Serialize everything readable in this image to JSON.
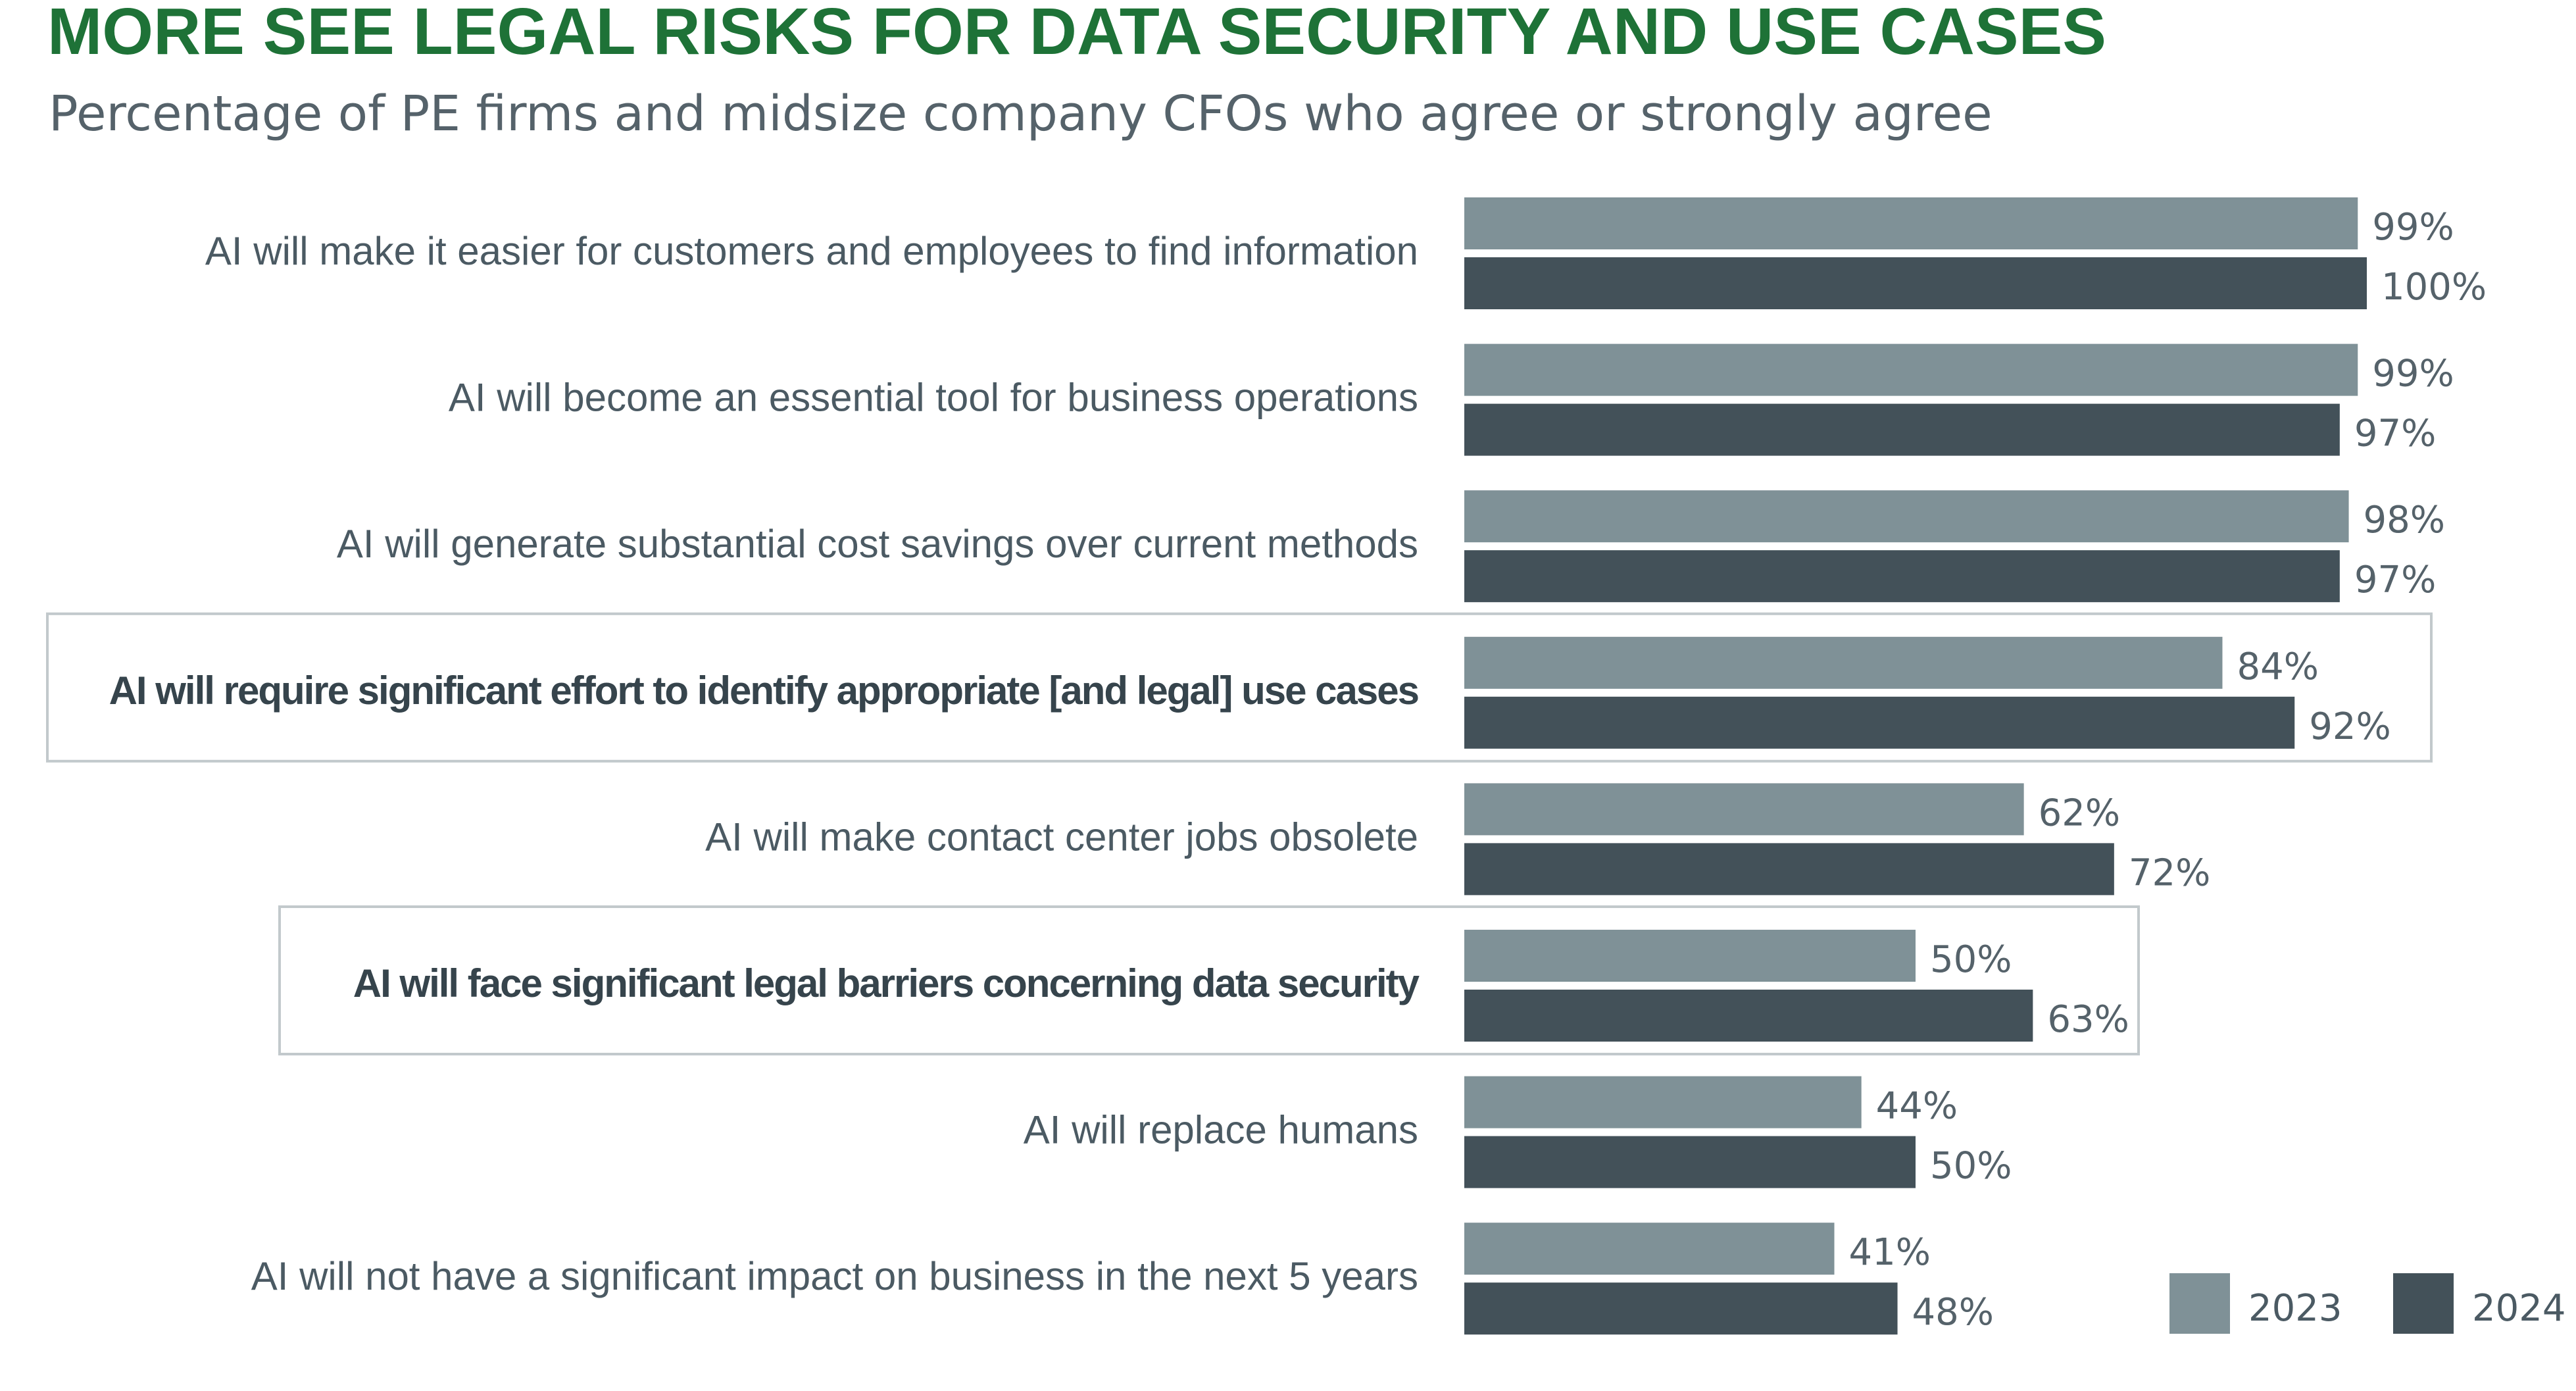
{
  "chart_data": {
    "type": "bar",
    "orientation": "horizontal",
    "title": "MORE SEE LEGAL RISKS FOR DATA SECURITY AND USE CASES",
    "subtitle": "Percentage of PE firms and midsize company CFOs who agree or strongly agree",
    "categories": [
      "AI will make it easier for customers and employees to find information",
      "AI will become an essential tool for business operations",
      "AI will generate substantial cost savings over current methods",
      "AI will require significant effort to identify appropriate [and legal] use cases",
      "AI will make contact center jobs obsolete",
      "AI will face significant legal barriers concerning data security",
      "AI will replace humans",
      "AI will not have a significant impact on business in the next 5 years"
    ],
    "highlighted": [
      false,
      false,
      false,
      true,
      false,
      true,
      false,
      false
    ],
    "series": [
      {
        "name": "2023",
        "values": [
          99,
          99,
          98,
          84,
          62,
          50,
          44,
          41
        ],
        "color": "#7f9197"
      },
      {
        "name": "2024",
        "values": [
          100,
          97,
          97,
          92,
          72,
          63,
          50,
          48
        ],
        "color": "#435159"
      }
    ],
    "value_suffix": "%",
    "xlim": [
      0,
      100
    ],
    "grid": false,
    "legend_position": "bottom-right",
    "colors": {
      "title": "#1e7237",
      "subtitle": "#55626a",
      "category_text": "#4b5a63",
      "highlight_text": "#36444c",
      "highlight_border": "#c2c9cc"
    }
  }
}
